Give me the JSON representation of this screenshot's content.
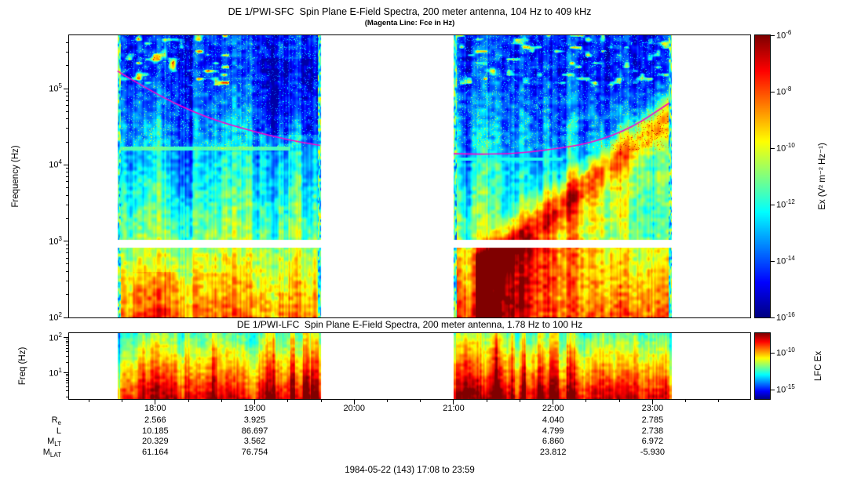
{
  "header": {
    "title": "DE 1/PWI-SFC  Spin Plane E-Field Spectra, 200 meter antenna, 104 Hz to 409 kHz",
    "subtitle": "(Magenta Line: Fce in Hz)"
  },
  "sfc_panel": {
    "ylabel": "Frequency (Hz)",
    "colorbar_label": "Ex (V² m⁻² Hz⁻¹)"
  },
  "lfc_panel": {
    "title": "DE 1/PWI-LFC  Spin Plane E-Field Spectra, 200 meter antenna, 1.78 Hz to 100 Hz",
    "ylabel": "Freq (Hz)",
    "colorbar_label": "LFC Ex"
  },
  "footer": {
    "date_range": "1984-05-22 (143) 17:08 to 23:59"
  },
  "chart_data": {
    "type": "heatmap",
    "xaxis": {
      "start_hour": 17.1333,
      "end_hour": 23.9833,
      "tick_hours": [
        18,
        19,
        20,
        21,
        22,
        23
      ],
      "tick_labels": [
        "18:00",
        "19:00",
        "20:00",
        "21:00",
        "22:00",
        "23:00"
      ],
      "minor_tick_minutes": 20
    },
    "panels": [
      {
        "id": "sfc",
        "ylabel": "Frequency (Hz)",
        "yscale": "log",
        "ylim_hz": [
          100,
          500000
        ],
        "ytick_exponents": [
          5,
          4,
          3,
          2
        ],
        "data_gap_band_hz": [
          830,
          1050
        ],
        "segments_hours": [
          [
            17.62,
            19.66
          ],
          [
            21.0,
            23.19
          ]
        ],
        "colorbar": {
          "label": "Ex (V² m⁻² Hz⁻¹)",
          "tick_exponents": [
            -6,
            -8,
            -10,
            -12,
            -14,
            -16
          ],
          "exp_range": [
            -6,
            -16
          ]
        }
      },
      {
        "id": "lfc",
        "ylabel": "Freq (Hz)",
        "yscale": "log",
        "ylim_hz": [
          1.78,
          135
        ],
        "ytick_exponents": [
          2,
          1
        ],
        "segments_hours": [
          [
            17.62,
            19.66
          ],
          [
            21.0,
            23.19
          ]
        ],
        "colorbar": {
          "label": "LFC Ex",
          "ticks": [
            {
              "exp": -10,
              "frac": 0.3
            },
            {
              "exp": -15,
              "frac": 0.86
            }
          ]
        }
      }
    ],
    "fce_line": {
      "color": "#ff00cc",
      "units": "Hz",
      "segment1": [
        [
          17.62,
          170000
        ],
        [
          18.0,
          85000
        ],
        [
          18.5,
          42000
        ],
        [
          19.0,
          27000
        ],
        [
          19.4,
          20500
        ],
        [
          19.66,
          18000
        ]
      ],
      "segment2": [
        [
          21.0,
          14000
        ],
        [
          21.5,
          13500
        ],
        [
          22.0,
          16000
        ],
        [
          22.4,
          19500
        ],
        [
          22.8,
          31000
        ],
        [
          23.17,
          65000
        ]
      ]
    },
    "ephemeris": {
      "column_hours": [
        18,
        19,
        22,
        23
      ],
      "rows": [
        {
          "label_main": "R",
          "label_sub": "e",
          "values": [
            "2.566",
            "3.925",
            "4.040",
            "2.785"
          ]
        },
        {
          "label_main": "L",
          "label_sub": "",
          "values": [
            "10.185",
            "86.697",
            "4.799",
            "2.738"
          ]
        },
        {
          "label_main": "M",
          "label_sub": "LT",
          "values": [
            "20.329",
            "3.562",
            "6.860",
            "6.972"
          ]
        },
        {
          "label_main": "M",
          "label_sub": "LAT",
          "values": [
            "61.164",
            "76.754",
            "23.812",
            "-5.930"
          ]
        }
      ]
    }
  }
}
